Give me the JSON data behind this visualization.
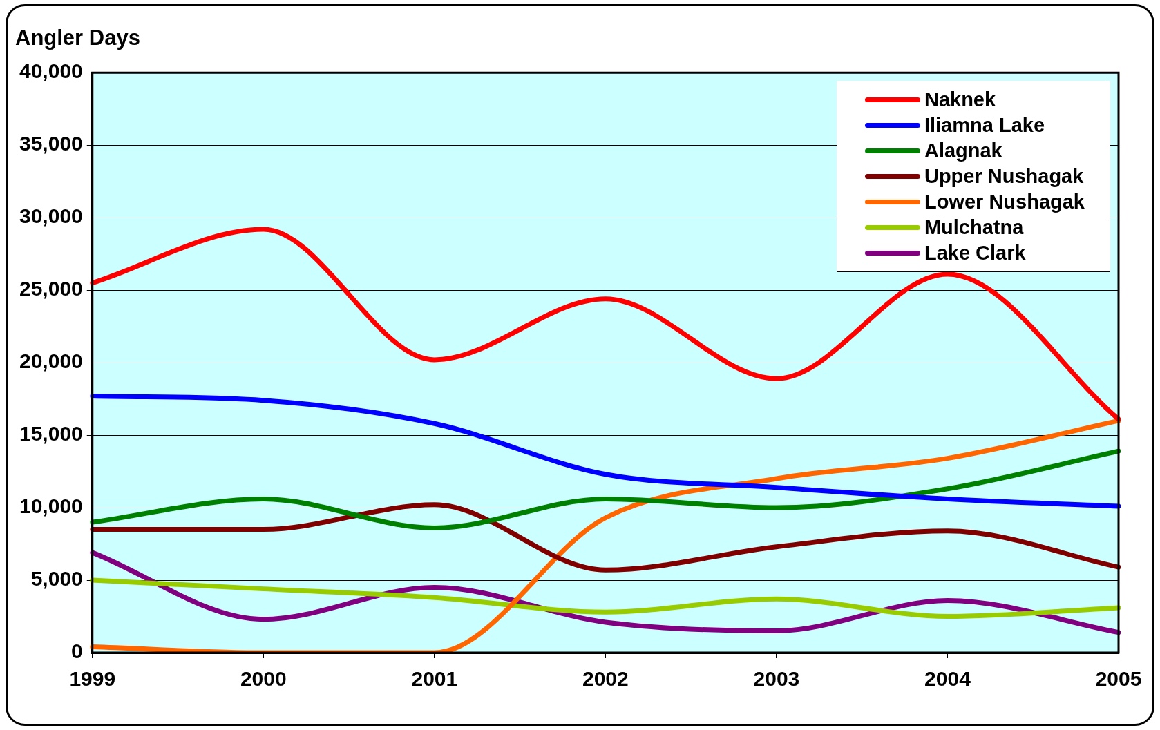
{
  "chart_data": {
    "type": "line",
    "ylabel": "Angler Days",
    "categories": [
      "1999",
      "2000",
      "2001",
      "2002",
      "2003",
      "2004",
      "2005"
    ],
    "series": [
      {
        "name": "Naknek",
        "color": "#ff0000",
        "values": [
          25500,
          29200,
          20200,
          24400,
          18900,
          26100,
          16100
        ]
      },
      {
        "name": "Iliamna Lake",
        "color": "#0000ff",
        "values": [
          17700,
          17400,
          15800,
          12300,
          11400,
          10600,
          10100
        ]
      },
      {
        "name": "Alagnak",
        "color": "#008000",
        "values": [
          9000,
          10600,
          8600,
          10600,
          10000,
          11300,
          13900
        ]
      },
      {
        "name": "Upper Nushagak",
        "color": "#800000",
        "values": [
          8500,
          8500,
          10200,
          5700,
          7300,
          8400,
          5900
        ]
      },
      {
        "name": "Lower Nushagak",
        "color": "#ff6600",
        "values": [
          400,
          0,
          0,
          9300,
          12000,
          13400,
          16000
        ]
      },
      {
        "name": "Mulchatna",
        "color": "#99cc00",
        "values": [
          5000,
          4400,
          3800,
          2800,
          3700,
          2500,
          3100
        ]
      },
      {
        "name": "Lake Clark",
        "color": "#800080",
        "values": [
          6900,
          2300,
          4500,
          2100,
          1500,
          3600,
          1400
        ]
      }
    ],
    "ylim": [
      0,
      40000
    ],
    "yticks": [
      0,
      {
        "value": 5000,
        "label": "5,000"
      },
      {
        "value": 10000,
        "label": "10,000"
      },
      {
        "value": 15000,
        "label": "15,000"
      },
      {
        "value": 20000,
        "label": "20,000"
      },
      {
        "value": 25000,
        "label": "25,000"
      },
      {
        "value": 30000,
        "label": "30,000"
      },
      {
        "value": 35000,
        "label": "35,000"
      },
      {
        "value": 40000,
        "label": "40,000"
      }
    ],
    "grid": "y",
    "legend": "top right",
    "marker": "none",
    "line_style": "solid"
  }
}
